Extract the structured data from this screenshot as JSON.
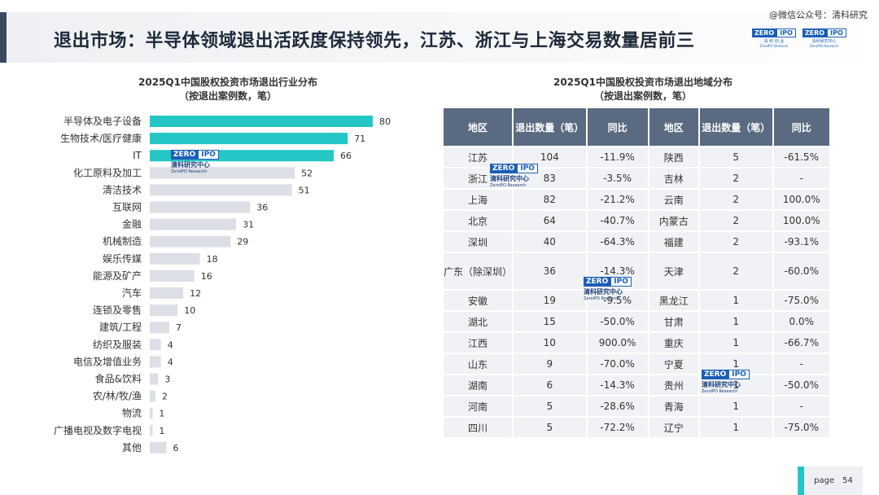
{
  "header": {
    "title": "退出市场：半导体领域退出活跃度保持领先，江苏、浙江与上海交易数量居前三",
    "wechat": "@微信公众号：清科研究",
    "logo1": {
      "zero": "ZERO",
      "ipo": "IPO",
      "cn": "清 科 创 业",
      "en": "ZeroIPO Ventures"
    },
    "logo2": {
      "zero": "ZERO",
      "ipo": "IPO",
      "cn": "清科研究中心",
      "en": "ZeroIPO Research"
    }
  },
  "watermark": {
    "zero": "ZERO",
    "ipo": "IPO",
    "cn": "清科研究中心",
    "en": "ZeroIPO Research"
  },
  "industry_chart": {
    "title_line1": "2025Q1中国股权投资市场退出行业分布",
    "title_line2": "（按退出案例数，笔）"
  },
  "chart_data": {
    "type": "bar",
    "orientation": "horizontal",
    "title": "2025Q1中国股权投资市场退出行业分布（按退出案例数，笔）",
    "categories": [
      "半导体及电子设备",
      "生物技术/医疗健康",
      "IT",
      "化工原料及加工",
      "清洁技术",
      "互联网",
      "金融",
      "机械制造",
      "娱乐传媒",
      "能源及矿产",
      "汽车",
      "连锁及零售",
      "建筑/工程",
      "纺织及服装",
      "电信及增值业务",
      "食品&饮料",
      "农/林/牧/渔",
      "物流",
      "广播电视及数字电视",
      "其他"
    ],
    "values": [
      80,
      71,
      66,
      52,
      51,
      36,
      31,
      29,
      18,
      16,
      12,
      10,
      7,
      4,
      4,
      3,
      2,
      1,
      1,
      6
    ],
    "highlight_count": 3,
    "colors": {
      "highlight": "#25c6c6",
      "normal": "#dcdfe5"
    }
  },
  "region_table": {
    "title_line1": "2025Q1中国股权投资市场退出地域分布",
    "title_line2": "（按退出案例数，笔）",
    "headers": [
      "地区",
      "退出数量（笔）",
      "同比",
      "地区",
      "退出数量（笔）",
      "同比"
    ],
    "rows": [
      [
        "江苏",
        "104",
        "-11.9%",
        "陕西",
        "5",
        "-61.5%"
      ],
      [
        "浙江",
        "83",
        "-3.5%",
        "吉林",
        "2",
        "-"
      ],
      [
        "上海",
        "82",
        "-21.2%",
        "云南",
        "2",
        "100.0%"
      ],
      [
        "北京",
        "64",
        "-40.7%",
        "内蒙古",
        "2",
        "100.0%"
      ],
      [
        "深圳",
        "40",
        "-64.3%",
        "福建",
        "2",
        "-93.1%"
      ],
      [
        "广东（除深圳）",
        "36",
        "-14.3%",
        "天津",
        "2",
        "-60.0%"
      ],
      [
        "安徽",
        "19",
        "-9.5%",
        "黑龙江",
        "1",
        "-75.0%"
      ],
      [
        "湖北",
        "15",
        "-50.0%",
        "甘肃",
        "1",
        "0.0%"
      ],
      [
        "江西",
        "10",
        "900.0%",
        "重庆",
        "1",
        "-66.7%"
      ],
      [
        "山东",
        "9",
        "-70.0%",
        "宁夏",
        "1",
        "-"
      ],
      [
        "湖南",
        "6",
        "-14.3%",
        "贵州",
        "1",
        "-50.0%"
      ],
      [
        "河南",
        "5",
        "-28.6%",
        "青海",
        "1",
        "-"
      ],
      [
        "四川",
        "5",
        "-72.2%",
        "辽宁",
        "1",
        "-75.0%"
      ]
    ]
  },
  "footer": {
    "page_label": "page",
    "page_number": "54"
  }
}
